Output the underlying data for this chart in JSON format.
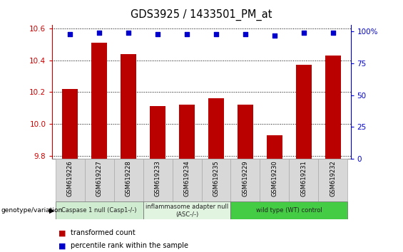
{
  "title": "GDS3925 / 1433501_PM_at",
  "samples": [
    "GSM619226",
    "GSM619227",
    "GSM619228",
    "GSM619233",
    "GSM619234",
    "GSM619235",
    "GSM619229",
    "GSM619230",
    "GSM619231",
    "GSM619232"
  ],
  "bar_values": [
    10.22,
    10.51,
    10.44,
    10.11,
    10.12,
    10.16,
    10.12,
    9.93,
    10.37,
    10.43
  ],
  "percentile_values": [
    98,
    99,
    99,
    98,
    98,
    98,
    98,
    97,
    99,
    99
  ],
  "bar_color": "#bb0000",
  "dot_color": "#0000cc",
  "ylim_left": [
    9.78,
    10.62
  ],
  "ylim_right": [
    0,
    105
  ],
  "yticks_left": [
    9.8,
    10.0,
    10.2,
    10.4,
    10.6
  ],
  "yticks_right": [
    0,
    25,
    50,
    75,
    100
  ],
  "ytick_labels_right": [
    "0",
    "25",
    "50",
    "75",
    "100%"
  ],
  "groups": [
    {
      "label": "Caspase 1 null (Casp1-/-)",
      "start": 0,
      "end": 3,
      "color": "#d0ecd0"
    },
    {
      "label": "inflammasome adapter null\n(ASC-/-)",
      "start": 3,
      "end": 6,
      "color": "#e0f4e0"
    },
    {
      "label": "wild type (WT) control",
      "start": 6,
      "end": 10,
      "color": "#44cc44"
    }
  ],
  "legend_items": [
    {
      "label": "transformed count",
      "color": "#bb0000"
    },
    {
      "label": "percentile rank within the sample",
      "color": "#0000cc"
    }
  ],
  "left_axis_color": "#cc0000",
  "right_axis_color": "#0000cc",
  "bar_bottom": 9.78,
  "bar_width": 0.55,
  "sample_bg_color": "#d8d8d8",
  "sample_border_color": "#aaaaaa"
}
